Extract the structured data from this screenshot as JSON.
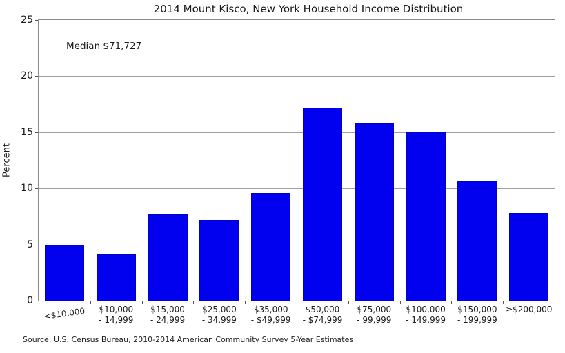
{
  "chart_data": {
    "type": "bar",
    "title": "2014 Mount Kisco, New York Household Income Distribution",
    "annotation": "Median $71,727",
    "source": "Source: U.S. Census Bureau, 2010-2014 American Community Survey 5-Year Estimates",
    "xlabel": "",
    "ylabel": "Percent",
    "ylim": [
      0,
      25
    ],
    "yticks": [
      0,
      5,
      10,
      15,
      20,
      25
    ],
    "grid": "horizontal-behind-bars",
    "legend": "none",
    "bar_color": "#0101f0",
    "bar_edge_color": "#0000c8",
    "gridline_color": "#a0a0a0",
    "spine_color": "#8a8a8a",
    "categories": [
      "<$10,000",
      "$10,000 - 14,999",
      "$15,000 - 24,999",
      "$25,000 - 34,999",
      "$35,000 - $49,999",
      "$50,000 - $74,999",
      "$75,000 - 99,999",
      "$100,000 - 149,999",
      "$150,000 - 199,999",
      "≥$200,000"
    ],
    "category_labels": [
      [
        "<$10,000"
      ],
      [
        "$10,000",
        "- 14,999"
      ],
      [
        "$15,000",
        "- 24,999"
      ],
      [
        "$25,000",
        "- 34,999"
      ],
      [
        "$35,000",
        "- $49,999"
      ],
      [
        "$50,000",
        "- $74,999"
      ],
      [
        "$75,000",
        "- 99,999"
      ],
      [
        "$100,000",
        "- 149,999"
      ],
      [
        "$150,000",
        "- 199,999"
      ],
      [
        "≥$200,000"
      ]
    ],
    "values": [
      5.0,
      4.1,
      7.7,
      7.2,
      9.6,
      17.2,
      15.8,
      15.0,
      10.6,
      7.8
    ]
  }
}
